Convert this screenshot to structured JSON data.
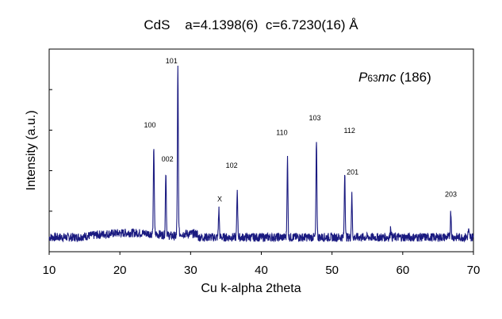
{
  "title": "CdS    a=4.1398(6)  c=6.7230(16) Å",
  "space_group": {
    "prefix": "P",
    "sub": "6",
    "rest": "3",
    "italic_part": "mc",
    "number": " (186)"
  },
  "chart_data": {
    "type": "line",
    "title": "CdS    a=4.1398(6)  c=6.7230(16) Å",
    "xlabel": "Cu k-alpha 2theta",
    "ylabel": "Intensity (a.u.)",
    "xlim": [
      10,
      70
    ],
    "xticks": [
      10,
      20,
      30,
      40,
      50,
      60,
      70
    ],
    "ylim": [
      0,
      100
    ],
    "yticks_count": 5,
    "grid": false,
    "line_color": "#1a1a80",
    "baseline": 6,
    "peaks": [
      {
        "x": 24.8,
        "y": 56,
        "label": "100"
      },
      {
        "x": 26.5,
        "y": 43,
        "label": "002"
      },
      {
        "x": 28.2,
        "y": 100,
        "label": "101"
      },
      {
        "x": 34.0,
        "y": 22,
        "label": "X"
      },
      {
        "x": 36.6,
        "y": 33,
        "label": "102"
      },
      {
        "x": 43.7,
        "y": 51,
        "label": "110"
      },
      {
        "x": 47.8,
        "y": 62,
        "label": "103"
      },
      {
        "x": 51.8,
        "y": 44,
        "label": "112"
      },
      {
        "x": 52.8,
        "y": 30,
        "label": "201"
      },
      {
        "x": 58.3,
        "y": 12
      },
      {
        "x": 66.8,
        "y": 21,
        "label": "203"
      },
      {
        "x": 69.3,
        "y": 10
      }
    ]
  }
}
